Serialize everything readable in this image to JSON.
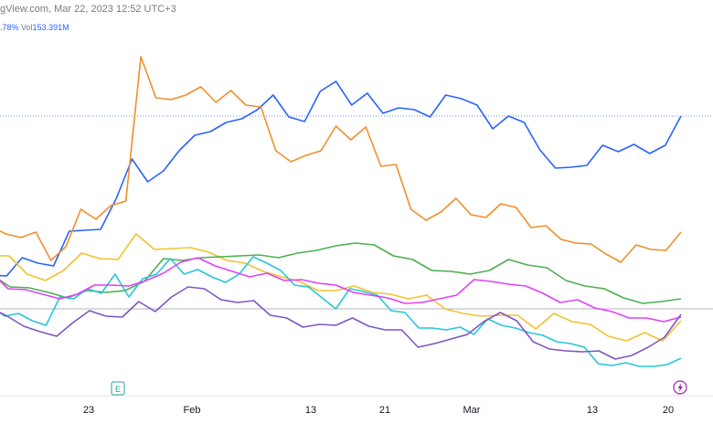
{
  "header": {
    "title": "gView.com, Mar 22, 2023 12:52 UTC+3",
    "change": ".78%",
    "vol_label": "Vol",
    "volume": "153.391M"
  },
  "chart_data": {
    "type": "line",
    "title": "",
    "xlabel": "",
    "ylabel": "",
    "x_ticks": [
      "23",
      "Feb",
      "13",
      "21",
      "Mar",
      "13",
      "20"
    ],
    "grid": false,
    "legend": "none",
    "markers": [
      {
        "label": "E",
        "icon": "earnings-marker",
        "color": "#26a69a"
      },
      {
        "label": "",
        "icon": "lightning-bolt-icon",
        "color": "#9c27b0"
      }
    ],
    "series": [
      {
        "color": "#2962ff",
        "values": [
          301,
          302,
          282,
          288,
          291,
          253,
          252,
          251,
          217,
          174,
          199,
          187,
          165,
          148,
          144,
          134,
          130,
          120,
          104,
          128,
          133,
          100,
          89,
          115,
          102,
          124,
          118,
          120,
          128,
          104,
          108,
          115,
          141,
          127,
          134,
          164,
          184,
          183,
          181,
          159,
          166,
          158,
          168,
          159,
          127
        ]
      },
      {
        "color": "#ef8f2c",
        "values": [
          248,
          256,
          260,
          254,
          285,
          270,
          229,
          240,
          225,
          220,
          62,
          107,
          109,
          104,
          95,
          112,
          99,
          115,
          117,
          165,
          177,
          170,
          165,
          138,
          153,
          139,
          182,
          180,
          229,
          241,
          232,
          217,
          235,
          238,
          223,
          227,
          249,
          247,
          262,
          266,
          267,
          278,
          287,
          268,
          273,
          274,
          254
        ]
      },
      {
        "color": "#f2c230",
        "values": [
          280,
          280,
          300,
          307,
          296,
          277,
          283,
          284,
          256,
          273,
          272,
          271,
          276,
          285,
          288,
          297,
          303,
          308,
          318,
          318,
          313,
          320,
          322,
          327,
          323,
          338,
          343,
          346,
          345,
          345,
          360,
          343,
          352,
          355,
          368,
          373,
          364,
          373,
          351
        ]
      },
      {
        "color": "#4caf50",
        "values": [
          300,
          314,
          315,
          320,
          326,
          318,
          320,
          318,
          308,
          283,
          285,
          282,
          281,
          280,
          279,
          282,
          277,
          274,
          269,
          266,
          268,
          280,
          284,
          296,
          297,
          300,
          296,
          284,
          290,
          293,
          307,
          313,
          316,
          326,
          332,
          330,
          327
        ]
      },
      {
        "color": "#26c6da",
        "values": [
          335,
          346,
          343,
          351,
          356,
          325,
          327,
          316,
          321,
          300,
          325,
          305,
          300,
          283,
          300,
          295,
          303,
          309,
          300,
          281,
          288,
          296,
          312,
          314,
          326,
          338,
          316,
          319,
          323,
          340,
          342,
          359,
          359,
          361,
          358,
          366,
          349,
          356,
          359,
          364,
          367,
          374,
          376,
          380,
          398,
          400,
          397,
          401,
          401,
          399,
          392
        ]
      },
      {
        "color": "#e040fb",
        "values": [
          298,
          316,
          317,
          322,
          327,
          322,
          312,
          312,
          313,
          307,
          299,
          287,
          282,
          291,
          297,
          303,
          299,
          307,
          306,
          310,
          312,
          320,
          323,
          326,
          332,
          331,
          327,
          323,
          306,
          308,
          311,
          313,
          321,
          331,
          328,
          337,
          341,
          348,
          348,
          352,
          347
        ]
      },
      {
        "color": "#7e57c2",
        "values": [
          337,
          346,
          357,
          363,
          368,
          353,
          340,
          346,
          347,
          330,
          341,
          325,
          314,
          316,
          328,
          331,
          329,
          345,
          348,
          358,
          355,
          356,
          348,
          357,
          361,
          361,
          380,
          376,
          371,
          366,
          352,
          342,
          351,
          374,
          382,
          384,
          385,
          384,
          393,
          389,
          380,
          369,
          344
        ]
      }
    ]
  }
}
